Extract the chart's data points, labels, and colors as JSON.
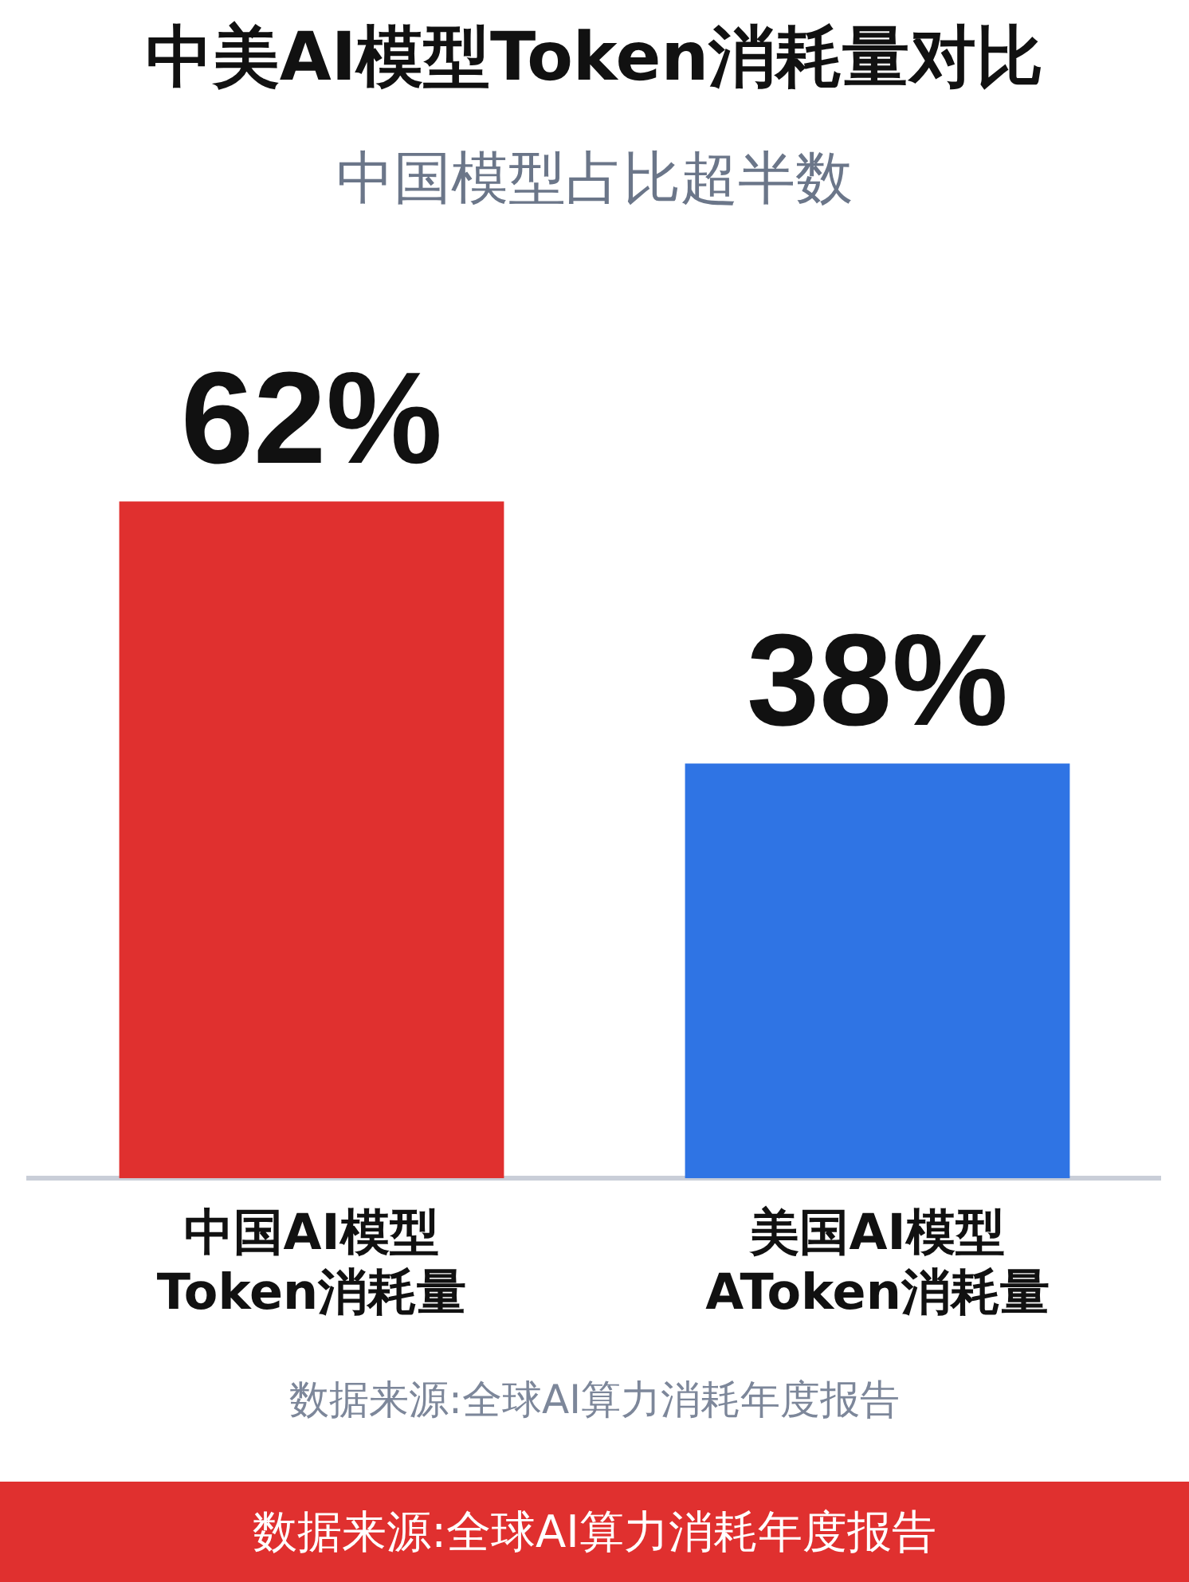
{
  "chart_data": {
    "type": "bar",
    "title": "中美AI模型Token消耗量对比",
    "subtitle": "中国模型占比超半数",
    "categories": [
      "中国AI模型\nToken消耗量",
      "美国AI模型\nAToken消耗量"
    ],
    "values": [
      62,
      38
    ],
    "colors": [
      "#e0302f",
      "#2f74e4"
    ],
    "value_labels": [
      "62%",
      "38%"
    ],
    "annotations": [
      "数据来源:全球AI算力消耗年度报告",
      "数据来源:全球AI算力消耗年度报告"
    ],
    "grid": false,
    "legend": false
  }
}
